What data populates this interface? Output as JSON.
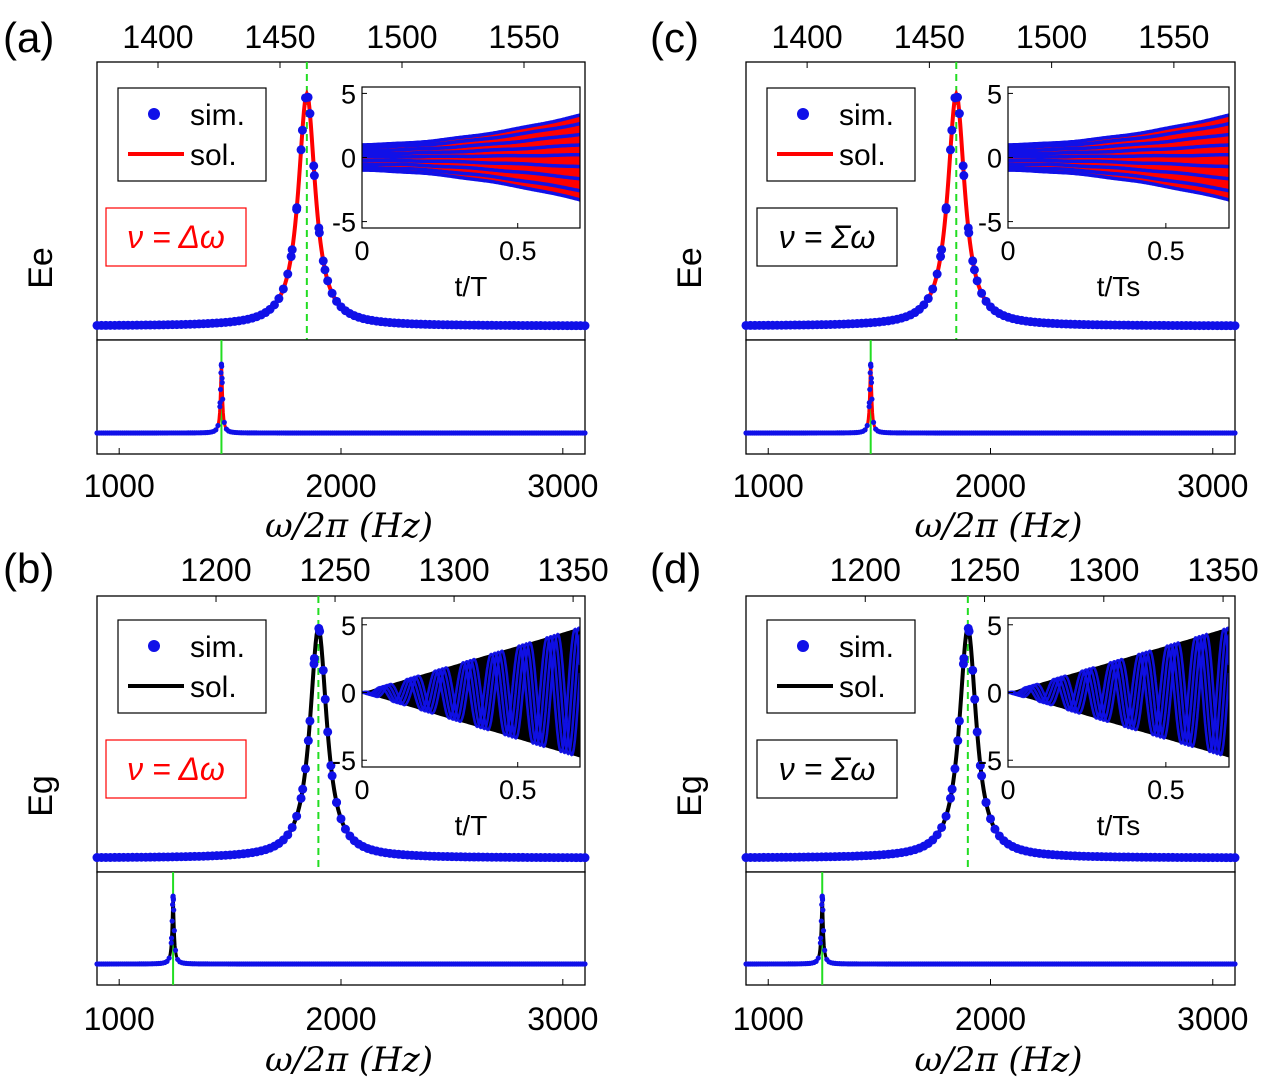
{
  "colors": {
    "marker": "#1010e8",
    "guide": "#22dd22",
    "frame": "#000000",
    "red_fit": "#ff0000",
    "black_fit": "#000000"
  },
  "chart_data": [
    {
      "id": "a",
      "type": "line",
      "panel_label": "(a)",
      "ylabel": "Ee",
      "top_axis": {
        "ticks": [
          "1400",
          "1450",
          "1500",
          "1550"
        ],
        "range": [
          1375,
          1575
        ]
      },
      "bottom_axis": {
        "ticks": [
          "1000",
          "2000",
          "3000"
        ],
        "range": [
          900,
          3100
        ],
        "xlabel": "ω/2π (Hz)"
      },
      "resonance_top": 1461,
      "resonance_bottom": 1461,
      "fit_color": "#ff0000",
      "legend": [
        "sim.",
        "sol."
      ],
      "annotation": "ν = Δω",
      "annotation_color": "#ff0000",
      "inset": {
        "kind": "constant_plus_growth",
        "xlabel": "t/T",
        "x_ticks": [
          "0",
          "0.5"
        ],
        "y_ticks": [
          "5",
          "0",
          "-5"
        ],
        "xlim": [
          0,
          0.7
        ],
        "ylim": [
          -5.5,
          5.5
        ],
        "fill_color": "#ff0000"
      }
    },
    {
      "id": "b",
      "type": "line",
      "panel_label": "(b)",
      "ylabel": "Eg",
      "top_axis": {
        "ticks": [
          "1200",
          "1250",
          "1300",
          "1350"
        ],
        "range": [
          1150,
          1355
        ]
      },
      "bottom_axis": {
        "ticks": [
          "1000",
          "2000",
          "3000"
        ],
        "range": [
          900,
          3100
        ],
        "xlabel": "ω/2π (Hz)"
      },
      "resonance_top": 1243,
      "resonance_bottom": 1243,
      "fit_color": "#000000",
      "legend": [
        "sim.",
        "sol."
      ],
      "annotation": "ν = Δω",
      "annotation_color": "#ff0000",
      "inset": {
        "kind": "growing_envelope",
        "xlabel": "t/T",
        "x_ticks": [
          "0",
          "0.5"
        ],
        "y_ticks": [
          "5",
          "0",
          "-5"
        ],
        "xlim": [
          0,
          0.7
        ],
        "ylim": [
          -5.5,
          5.5
        ],
        "fill_color": "#000000"
      }
    },
    {
      "id": "c",
      "type": "line",
      "panel_label": "(c)",
      "ylabel": "Ee",
      "top_axis": {
        "ticks": [
          "1400",
          "1450",
          "1500",
          "1550"
        ],
        "range": [
          1375,
          1575
        ]
      },
      "bottom_axis": {
        "ticks": [
          "1000",
          "2000",
          "3000"
        ],
        "range": [
          900,
          3100
        ],
        "xlabel": "ω/2π (Hz)"
      },
      "resonance_top": 1461,
      "resonance_bottom": 1461,
      "fit_color": "#ff0000",
      "legend": [
        "sim.",
        "sol."
      ],
      "annotation": "ν = Σω",
      "annotation_color": "#000000",
      "inset": {
        "kind": "constant_plus_growth",
        "xlabel": "t/Ts",
        "x_ticks": [
          "0",
          "0.5"
        ],
        "y_ticks": [
          "5",
          "0",
          "-5"
        ],
        "xlim": [
          0,
          0.7
        ],
        "ylim": [
          -5.5,
          5.5
        ],
        "fill_color": "#ff0000"
      }
    },
    {
      "id": "d",
      "type": "line",
      "panel_label": "(d)",
      "ylabel": "Eg",
      "top_axis": {
        "ticks": [
          "1200",
          "1250",
          "1300",
          "1350"
        ],
        "range": [
          1150,
          1355
        ]
      },
      "bottom_axis": {
        "ticks": [
          "1000",
          "2000",
          "3000"
        ],
        "range": [
          900,
          3100
        ],
        "xlabel": "ω/2π (Hz)"
      },
      "resonance_top": 1243,
      "resonance_bottom": 1243,
      "fit_color": "#000000",
      "legend": [
        "sim.",
        "sol."
      ],
      "annotation": "ν = Σω",
      "annotation_color": "#000000",
      "inset": {
        "kind": "growing_envelope",
        "xlabel": "t/Ts",
        "x_ticks": [
          "0",
          "0.5"
        ],
        "y_ticks": [
          "5",
          "0",
          "-5"
        ],
        "xlim": [
          0,
          0.7
        ],
        "ylim": [
          -5.5,
          5.5
        ],
        "fill_color": "#000000"
      }
    }
  ]
}
